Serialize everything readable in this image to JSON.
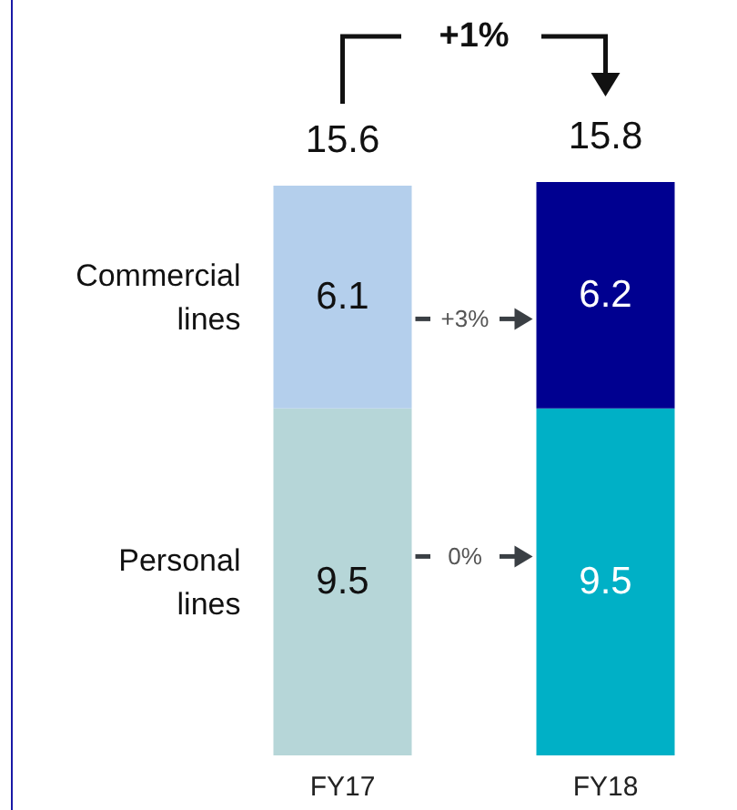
{
  "chart_data": {
    "type": "bar",
    "stacked": true,
    "data_labels": true,
    "categories": [
      "FY17",
      "FY18"
    ],
    "series": [
      {
        "name": "Personal lines",
        "values": [
          9.5,
          9.5
        ],
        "colors": [
          "#b6d6d8",
          "#00b0c6"
        ]
      },
      {
        "name": "Commercial lines",
        "values": [
          6.1,
          6.2
        ],
        "colors": [
          "#b4cfec",
          "#000090"
        ]
      }
    ],
    "totals": [
      "15.6",
      "15.8"
    ],
    "annotations": [
      "+1%",
      "+3%",
      "0%"
    ]
  }
}
